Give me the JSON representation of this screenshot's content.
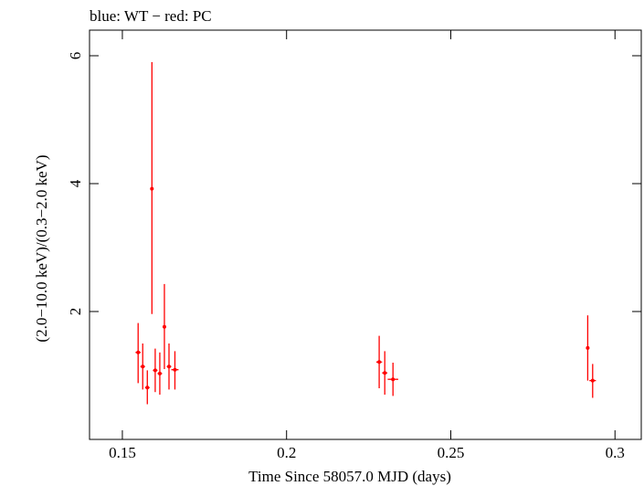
{
  "chart_data": {
    "type": "scatter",
    "title": "blue: WT − red: PC",
    "xlabel": "Time Since 58057.0 MJD (days)",
    "ylabel": "(2.0−10.0 keV)/(0.3−2.0 keV)",
    "xlim": [
      0.14,
      0.308
    ],
    "ylim": [
      0.0,
      6.4
    ],
    "x_ticks": [
      0.15,
      0.2,
      0.25,
      0.3
    ],
    "x_tick_labels": [
      "0.15",
      "0.2",
      "0.25",
      "0.3"
    ],
    "y_ticks": [
      2,
      4,
      6
    ],
    "y_tick_labels": [
      "2",
      "4",
      "6"
    ],
    "grid": false,
    "series": [
      {
        "color": "#ff0000",
        "points": [
          {
            "x": 0.1548,
            "y": 1.36,
            "xerr": 0.0008,
            "ylow": 0.88,
            "yhigh": 1.82
          },
          {
            "x": 0.1562,
            "y": 1.14,
            "xerr": 0.0007,
            "ylow": 0.78,
            "yhigh": 1.5
          },
          {
            "x": 0.1576,
            "y": 0.81,
            "xerr": 0.0007,
            "ylow": 0.55,
            "yhigh": 1.08
          },
          {
            "x": 0.159,
            "y": 3.92,
            "xerr": 0.0004,
            "ylow": 1.96,
            "yhigh": 5.9
          },
          {
            "x": 0.16,
            "y": 1.08,
            "xerr": 0.0007,
            "ylow": 0.74,
            "yhigh": 1.42
          },
          {
            "x": 0.1614,
            "y": 1.03,
            "xerr": 0.0007,
            "ylow": 0.7,
            "yhigh": 1.36
          },
          {
            "x": 0.1628,
            "y": 1.76,
            "xerr": 0.0004,
            "ylow": 1.1,
            "yhigh": 2.43
          },
          {
            "x": 0.1642,
            "y": 1.14,
            "xerr": 0.0007,
            "ylow": 0.78,
            "yhigh": 1.5
          },
          {
            "x": 0.166,
            "y": 1.09,
            "xerr": 0.0011,
            "ylow": 0.78,
            "yhigh": 1.38
          },
          {
            "x": 0.2282,
            "y": 1.21,
            "xerr": 0.0009,
            "ylow": 0.8,
            "yhigh": 1.62
          },
          {
            "x": 0.2299,
            "y": 1.04,
            "xerr": 0.0008,
            "ylow": 0.7,
            "yhigh": 1.38
          },
          {
            "x": 0.2324,
            "y": 0.94,
            "xerr": 0.0016,
            "ylow": 0.68,
            "yhigh": 1.2
          },
          {
            "x": 0.2917,
            "y": 1.43,
            "xerr": 0.0004,
            "ylow": 0.92,
            "yhigh": 1.94
          },
          {
            "x": 0.2932,
            "y": 0.92,
            "xerr": 0.001,
            "ylow": 0.65,
            "yhigh": 1.18
          }
        ]
      }
    ]
  }
}
